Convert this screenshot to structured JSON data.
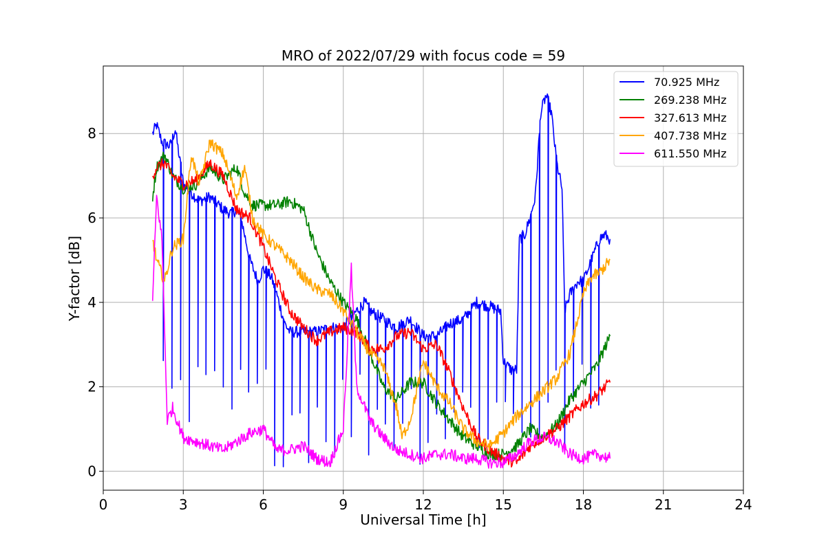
{
  "chart_data": {
    "type": "line",
    "title": "MRO of 2022/07/29 with focus code = 59",
    "xlabel": "Universal Time [h]",
    "ylabel": "Y-factor [dB]",
    "xlim": [
      0,
      24
    ],
    "ylim": [
      -0.45,
      9.6
    ],
    "xticks": [
      0,
      3,
      6,
      9,
      12,
      15,
      18,
      21,
      24
    ],
    "yticks": [
      0,
      2,
      4,
      6,
      8
    ],
    "grid": true,
    "legend_position": "top-right",
    "series": [
      {
        "name": "70.925 MHz",
        "color": "#0000ff",
        "x": [
          1.85,
          2.0,
          2.2,
          2.5,
          2.7,
          3.0,
          3.3,
          3.6,
          4.0,
          4.5,
          4.8,
          5.0,
          5.2,
          5.5,
          5.8,
          6.0,
          6.3,
          6.5,
          6.8,
          7.0,
          7.5,
          8.0,
          8.5,
          9.0,
          9.5,
          9.8,
          10.0,
          10.5,
          11.0,
          11.5,
          12.0,
          12.5,
          13.0,
          13.5,
          14.0,
          14.5,
          14.9,
          15.0,
          15.3,
          15.5,
          15.6,
          15.8,
          16.0,
          16.2,
          16.4,
          16.6,
          16.8,
          17.0,
          17.2,
          17.3,
          17.5,
          17.8,
          18.0,
          18.3,
          18.6,
          18.8,
          19.0
        ],
        "values": [
          8.0,
          8.2,
          7.8,
          7.7,
          8.1,
          6.8,
          6.6,
          6.4,
          6.5,
          6.2,
          6.1,
          6.2,
          5.9,
          5.0,
          4.5,
          4.8,
          4.6,
          4.2,
          3.5,
          3.3,
          3.3,
          3.3,
          3.4,
          3.4,
          3.8,
          4.0,
          3.8,
          3.6,
          3.4,
          3.6,
          3.2,
          3.2,
          3.5,
          3.6,
          4.0,
          3.9,
          3.8,
          2.6,
          2.4,
          2.4,
          5.5,
          5.6,
          6.0,
          6.5,
          8.5,
          8.9,
          8.5,
          7.3,
          6.7,
          3.8,
          4.2,
          4.5,
          4.5,
          5.0,
          5.5,
          5.6,
          5.5
        ],
        "dropouts_to": 0.1
      },
      {
        "name": "269.238 MHz",
        "color": "#008000",
        "x": [
          1.85,
          2.0,
          2.3,
          2.6,
          3.0,
          3.5,
          4.0,
          4.5,
          5.0,
          5.3,
          5.6,
          6.0,
          6.5,
          7.0,
          7.5,
          8.0,
          8.5,
          9.0,
          9.5,
          10.0,
          10.5,
          11.0,
          11.5,
          12.0,
          12.5,
          13.0,
          13.5,
          14.0,
          14.5,
          15.0,
          15.5,
          16.0,
          16.5,
          17.0,
          17.5,
          18.0,
          18.5,
          19.0
        ],
        "values": [
          6.5,
          7.2,
          7.5,
          7.0,
          6.7,
          6.8,
          7.2,
          6.9,
          7.2,
          6.6,
          6.3,
          6.3,
          6.3,
          6.4,
          6.2,
          5.2,
          4.5,
          4.0,
          3.6,
          2.8,
          2.0,
          1.7,
          2.1,
          2.1,
          1.6,
          1.2,
          0.8,
          0.6,
          0.4,
          0.4,
          0.6,
          1.0,
          0.8,
          1.1,
          1.7,
          2.1,
          2.5,
          3.2
        ]
      },
      {
        "name": "327.613 MHz",
        "color": "#ff0000",
        "x": [
          1.85,
          2.0,
          2.3,
          2.6,
          3.0,
          3.5,
          4.0,
          4.5,
          5.0,
          5.5,
          6.0,
          6.5,
          7.0,
          7.5,
          8.0,
          8.5,
          9.0,
          9.5,
          10.0,
          10.5,
          11.0,
          11.5,
          12.0,
          12.5,
          13.0,
          13.5,
          14.0,
          14.5,
          15.0,
          15.5,
          16.0,
          16.5,
          17.0,
          17.5,
          18.0,
          18.5,
          19.0
        ],
        "values": [
          7.0,
          7.2,
          7.3,
          7.0,
          6.8,
          6.9,
          7.3,
          7.0,
          6.2,
          6.0,
          5.3,
          4.5,
          3.8,
          3.4,
          3.1,
          3.3,
          3.4,
          3.3,
          2.9,
          2.9,
          3.2,
          3.3,
          2.9,
          3.0,
          2.3,
          1.5,
          0.8,
          0.5,
          0.3,
          0.2,
          0.6,
          0.8,
          1.0,
          1.3,
          1.6,
          1.8,
          2.1
        ]
      },
      {
        "name": "407.738 MHz",
        "color": "#ffa500",
        "x": [
          1.85,
          2.0,
          2.3,
          2.6,
          3.0,
          3.3,
          3.6,
          4.0,
          4.5,
          5.0,
          5.3,
          5.6,
          6.0,
          6.5,
          7.0,
          7.5,
          8.0,
          8.5,
          9.0,
          9.5,
          10.0,
          10.5,
          11.0,
          11.2,
          11.5,
          12.0,
          12.5,
          13.0,
          13.5,
          14.0,
          14.5,
          15.0,
          15.5,
          16.0,
          16.5,
          17.0,
          17.5,
          18.0,
          18.3,
          18.6,
          19.0
        ],
        "values": [
          5.5,
          5.0,
          4.5,
          5.3,
          5.5,
          7.5,
          6.8,
          7.8,
          7.5,
          6.5,
          7.2,
          6.0,
          5.6,
          5.3,
          5.0,
          4.6,
          4.3,
          4.2,
          3.8,
          3.3,
          2.8,
          2.5,
          1.5,
          0.8,
          1.2,
          2.6,
          2.0,
          1.6,
          1.0,
          0.7,
          0.6,
          0.9,
          1.3,
          1.6,
          1.9,
          2.2,
          2.8,
          4.2,
          4.6,
          4.7,
          5.0
        ]
      },
      {
        "name": "611.550 MHz",
        "color": "#ff00ff",
        "x": [
          1.85,
          2.0,
          2.2,
          2.4,
          2.6,
          3.0,
          3.5,
          4.0,
          4.5,
          5.0,
          5.5,
          6.0,
          6.5,
          7.0,
          7.5,
          8.0,
          8.5,
          9.0,
          9.3,
          9.5,
          10.0,
          10.5,
          11.0,
          11.5,
          12.0,
          12.5,
          13.0,
          13.5,
          14.0,
          14.5,
          15.0,
          15.5,
          16.0,
          16.5,
          17.0,
          17.5,
          18.0,
          18.5,
          19.0
        ],
        "values": [
          4.0,
          6.5,
          5.5,
          1.2,
          1.5,
          0.8,
          0.7,
          0.6,
          0.5,
          0.7,
          0.9,
          1.0,
          0.5,
          0.5,
          0.6,
          0.3,
          0.2,
          1.0,
          4.8,
          2.0,
          1.2,
          0.8,
          0.5,
          0.4,
          0.3,
          0.4,
          0.4,
          0.3,
          0.3,
          0.2,
          0.2,
          0.4,
          0.7,
          0.8,
          0.7,
          0.4,
          0.3,
          0.4,
          0.3
        ]
      }
    ]
  }
}
